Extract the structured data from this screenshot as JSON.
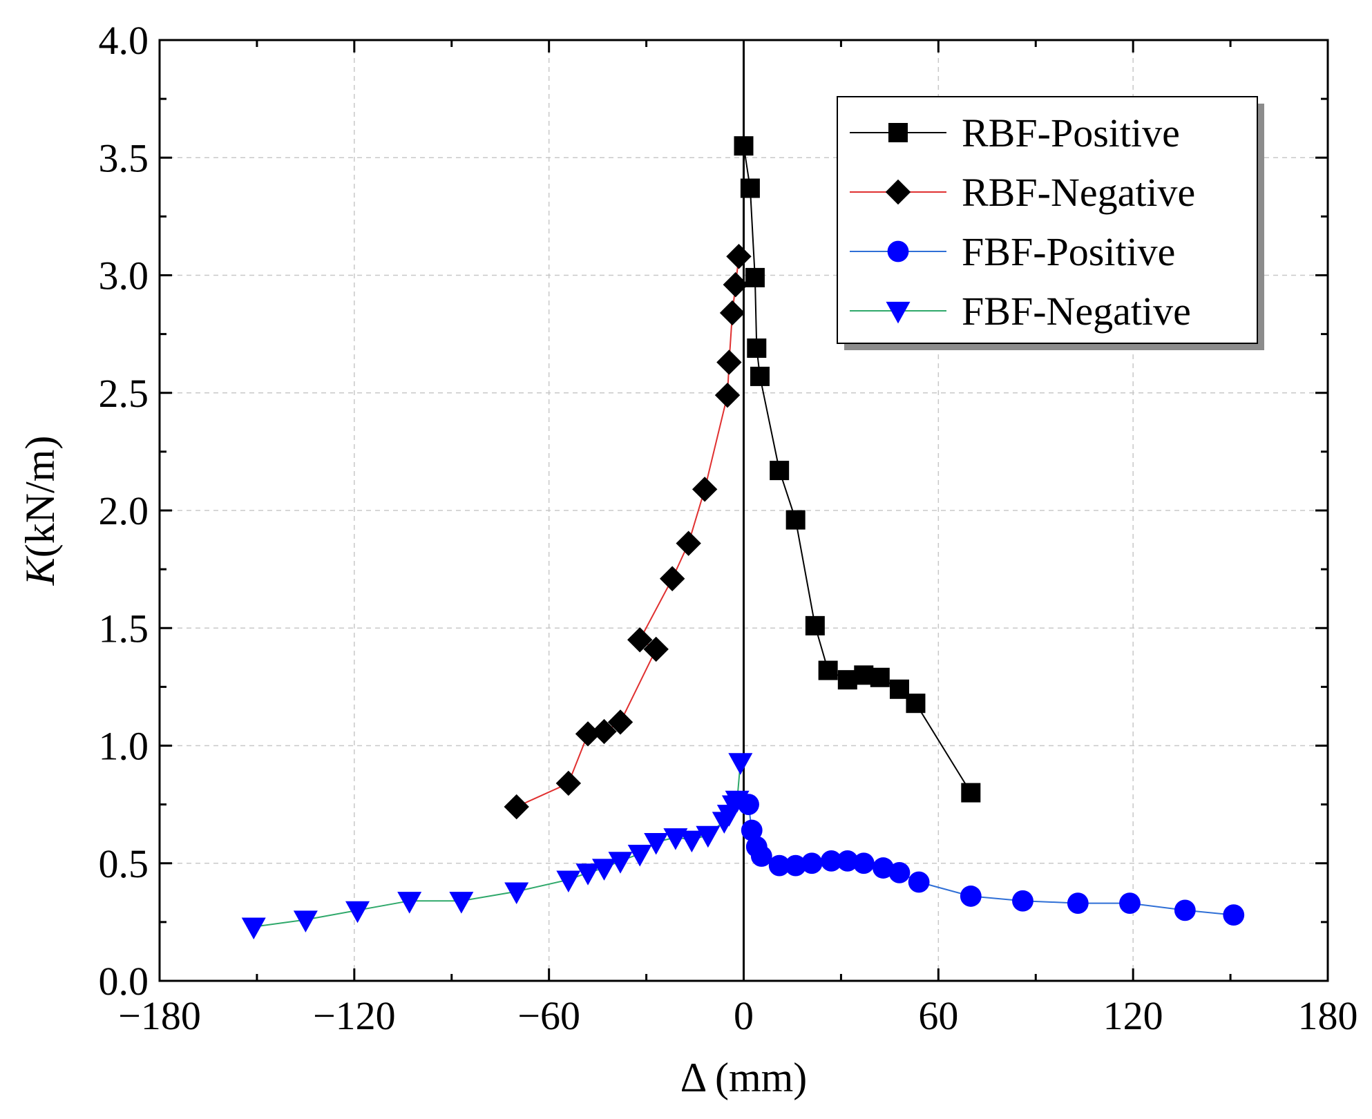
{
  "chart_data": {
    "type": "scatter",
    "title": "",
    "xlabel": "Δ (mm)",
    "ylabel_italic": "K",
    "ylabel_rest": "(kN/m)",
    "xlim": [
      -180,
      180
    ],
    "ylim": [
      0.0,
      4.0
    ],
    "x_ticks": [
      -180,
      -120,
      -60,
      0,
      60,
      120,
      180
    ],
    "x_tick_labels": [
      "−180",
      "−120",
      "−60",
      "0",
      "60",
      "120",
      "180"
    ],
    "x_minor_step": 30,
    "y_ticks": [
      0.0,
      0.5,
      1.0,
      1.5,
      2.0,
      2.5,
      3.0,
      3.5,
      4.0
    ],
    "y_tick_labels": [
      "0.0",
      "0.5",
      "1.0",
      "1.5",
      "2.0",
      "2.5",
      "3.0",
      "3.5",
      "4.0"
    ],
    "y_minor_step": 0.25,
    "grid": true,
    "zero_line_x": 0,
    "legend_position": "top-right",
    "series": [
      {
        "name": "RBF-Positive",
        "marker": "square",
        "line_color": "#000000",
        "marker_color": "#000000",
        "x": [
          0,
          2,
          3.5,
          4,
          5,
          11,
          16,
          22,
          26,
          32,
          37,
          42,
          48,
          53,
          70
        ],
        "y": [
          3.55,
          3.37,
          2.99,
          2.69,
          2.57,
          2.17,
          1.96,
          1.51,
          1.32,
          1.28,
          1.3,
          1.29,
          1.24,
          1.18,
          0.8
        ]
      },
      {
        "name": "RBF-Negative",
        "marker": "diamond",
        "line_color": "#e03030",
        "marker_color": "#000000",
        "x": [
          -1.5,
          -2.5,
          -3.5,
          -4.5,
          -5,
          -12,
          -17,
          -22,
          -32,
          -27,
          -38,
          -43,
          -48,
          -54,
          -70
        ],
        "y": [
          3.08,
          2.96,
          2.84,
          2.63,
          2.49,
          2.09,
          1.86,
          1.71,
          1.45,
          1.41,
          1.1,
          1.06,
          1.05,
          0.84,
          0.74
        ]
      },
      {
        "name": "FBF-Positive",
        "marker": "circle",
        "line_color": "#2f6fd6",
        "marker_color": "#0000ff",
        "x": [
          1.5,
          2.5,
          4,
          5.5,
          11,
          16,
          21,
          27,
          32,
          37,
          43,
          48,
          54,
          70,
          86,
          103,
          119,
          136,
          151
        ],
        "y": [
          0.75,
          0.64,
          0.57,
          0.53,
          0.49,
          0.49,
          0.5,
          0.51,
          0.51,
          0.5,
          0.48,
          0.46,
          0.42,
          0.36,
          0.34,
          0.33,
          0.33,
          0.3,
          0.28
        ]
      },
      {
        "name": "FBF-Negative",
        "marker": "triangle-down",
        "line_color": "#2ea86a",
        "marker_color": "#0000ff",
        "x": [
          -1,
          -2,
          -3,
          -4.5,
          -6,
          -11,
          -16,
          -21,
          -27,
          -32,
          -38,
          -43,
          -48,
          -54,
          -70,
          -87,
          -103,
          -119,
          -135,
          -151
        ],
        "y": [
          0.93,
          0.77,
          0.75,
          0.71,
          0.68,
          0.62,
          0.6,
          0.61,
          0.59,
          0.54,
          0.51,
          0.48,
          0.46,
          0.43,
          0.38,
          0.34,
          0.34,
          0.3,
          0.26,
          0.23
        ]
      }
    ]
  }
}
